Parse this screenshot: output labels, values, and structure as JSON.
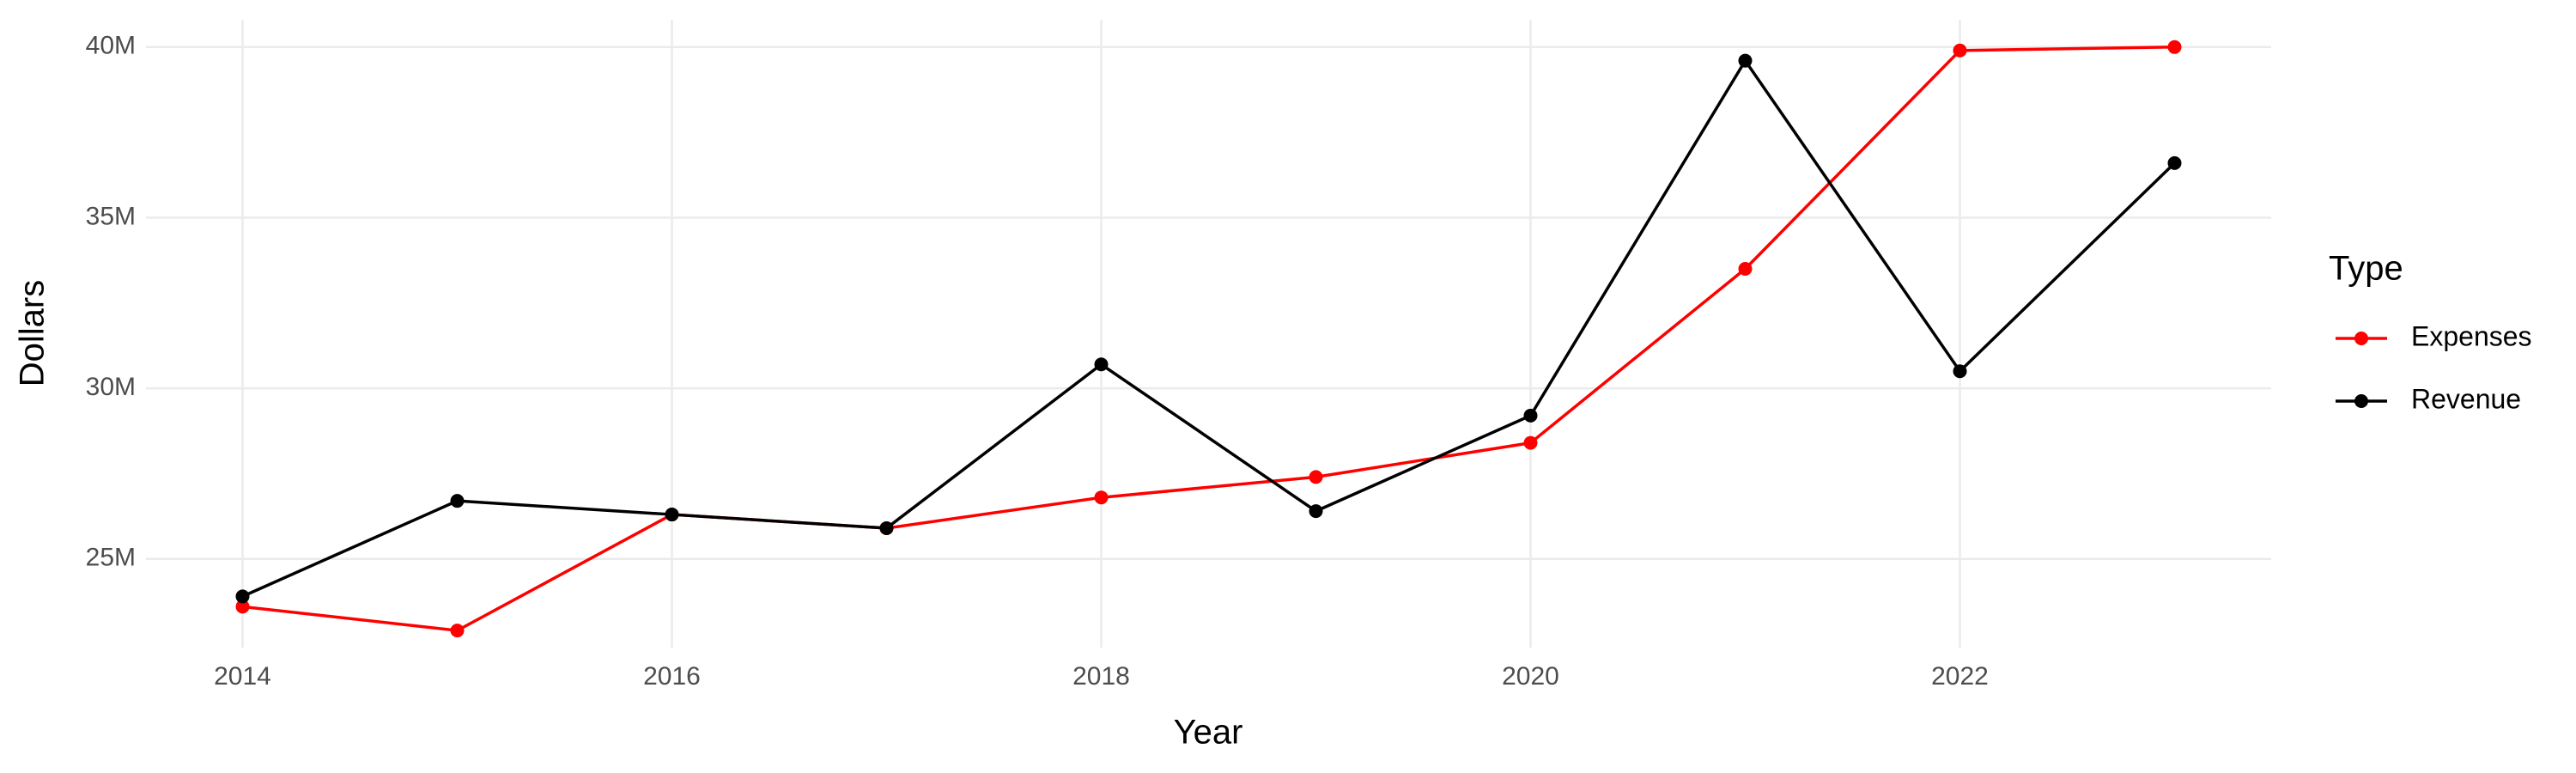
{
  "chart_data": {
    "type": "line",
    "x_label": "Year",
    "y_label": "Dollars",
    "x": [
      2014,
      2015,
      2016,
      2017,
      2018,
      2019,
      2020,
      2021,
      2022,
      2023
    ],
    "series": [
      {
        "name": "Expenses",
        "color": "#ff0000",
        "values": [
          23600000,
          22900000,
          26300000,
          25900000,
          26800000,
          27400000,
          28400000,
          33500000,
          39900000,
          40000000
        ]
      },
      {
        "name": "Revenue",
        "color": "#000000",
        "values": [
          23900000,
          26700000,
          26300000,
          25900000,
          30700000,
          26400000,
          29200000,
          39600000,
          30500000,
          36600000
        ]
      }
    ],
    "xlim": [
      2013.55,
      2023.45
    ],
    "xticks": [
      2014,
      2016,
      2018,
      2020,
      2022
    ],
    "ylim": [
      22400000,
      40800000
    ],
    "yticks": [
      {
        "value": 25000000,
        "label": "25M"
      },
      {
        "value": 30000000,
        "label": "30M"
      },
      {
        "value": 35000000,
        "label": "35M"
      },
      {
        "value": 40000000,
        "label": "40M"
      }
    ],
    "grid": true,
    "legend_title": "Type",
    "legend_position": "right"
  }
}
